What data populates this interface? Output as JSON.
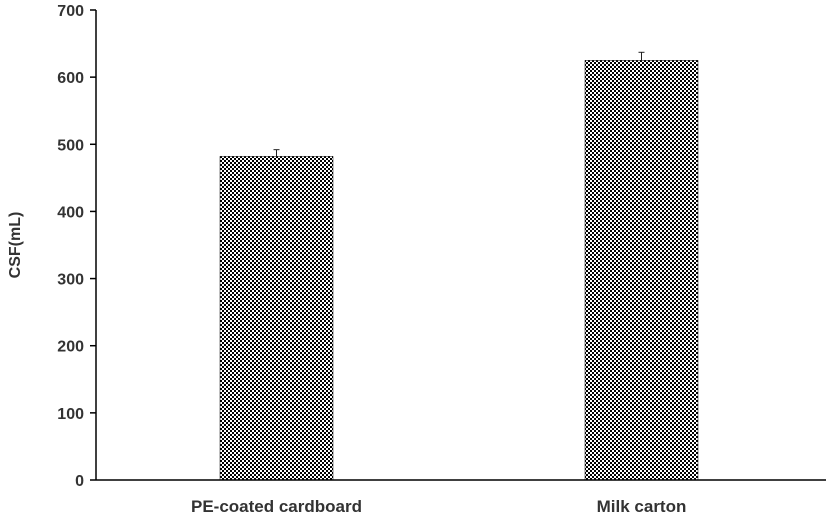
{
  "chart_data": {
    "type": "bar",
    "categories": [
      "PE-coated cardboard",
      "Milk carton"
    ],
    "values": [
      482,
      625
    ],
    "errors": [
      10,
      12
    ],
    "ylabel": "CSF(mL)",
    "xlabel": "",
    "ylim": [
      0,
      700
    ],
    "yticks": [
      0,
      100,
      200,
      300,
      400,
      500,
      600,
      700
    ],
    "grid": false,
    "bar_fill": "#000000",
    "bar_pattern_bg": "#ffffff"
  }
}
